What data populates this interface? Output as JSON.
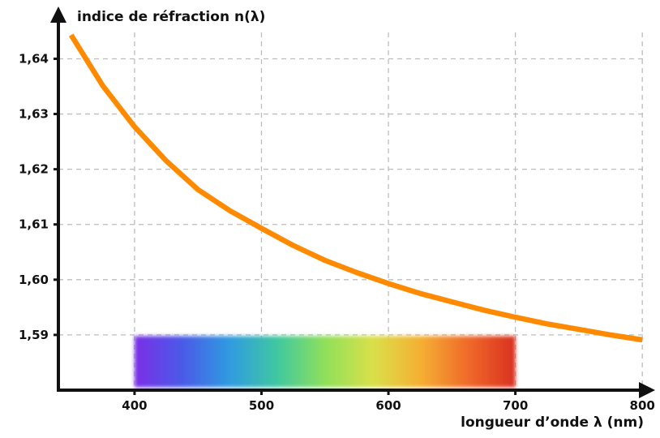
{
  "chart_data": {
    "type": "line",
    "title": "",
    "ylabel": "indice de réfraction n(λ)",
    "xlabel": "longueur d’onde λ (nm)",
    "xlim": [
      340,
      805
    ],
    "ylim": [
      1.58,
      1.648
    ],
    "x_ticks": [
      400,
      500,
      600,
      700,
      800
    ],
    "x_tick_labels": [
      "400",
      "500",
      "600",
      "700",
      "800"
    ],
    "y_ticks": [
      1.59,
      1.6,
      1.61,
      1.62,
      1.63,
      1.64
    ],
    "y_tick_labels": [
      "1,59",
      "1,60",
      "1,61",
      "1,62",
      "1,63",
      "1,64"
    ],
    "grid": true,
    "series": [
      {
        "x": [
          350,
          375,
          400,
          425,
          450,
          475,
          500,
          525,
          550,
          575,
          600,
          625,
          650,
          675,
          700,
          725,
          750,
          775,
          800
        ],
        "y": [
          1.6443,
          1.6351,
          1.6277,
          1.6215,
          1.6163,
          1.6125,
          1.6093,
          1.6062,
          1.6035,
          1.6013,
          1.5993,
          1.5975,
          1.596,
          1.5945,
          1.5932,
          1.592,
          1.591,
          1.59,
          1.5891
        ],
        "color": "#ff8a00"
      }
    ],
    "spectrum_band": {
      "x_range": [
        400,
        700
      ],
      "y_range": [
        1.5805,
        1.5898
      ],
      "colors": [
        "#7b2ee6",
        "#4a5ae8",
        "#2f9be0",
        "#40c8a0",
        "#8fe05a",
        "#d9e04a",
        "#f5b033",
        "#f06a2a",
        "#d93020"
      ]
    }
  }
}
